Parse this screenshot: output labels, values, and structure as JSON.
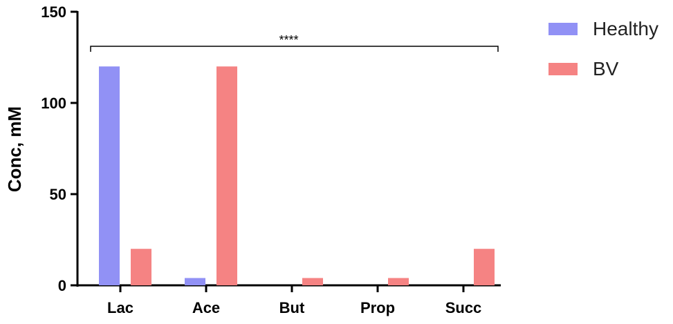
{
  "chart_data": {
    "type": "bar",
    "categories": [
      "Lac",
      "Ace",
      "But",
      "Prop",
      "Succ"
    ],
    "series": [
      {
        "name": "Healthy",
        "values": [
          120,
          4,
          0,
          0,
          0
        ],
        "color": "#9191f5"
      },
      {
        "name": "BV",
        "values": [
          20,
          120,
          4,
          4,
          20
        ],
        "color": "#f58383"
      }
    ],
    "ylabel": "Conc, mM",
    "xlabel": "",
    "ylim": [
      0,
      150
    ],
    "yticks": [
      0,
      50,
      100,
      150
    ],
    "grid": false,
    "legend_position": "top-right",
    "annotations": [
      {
        "text": "****",
        "spans": [
          "Lac",
          "Succ"
        ]
      }
    ]
  }
}
